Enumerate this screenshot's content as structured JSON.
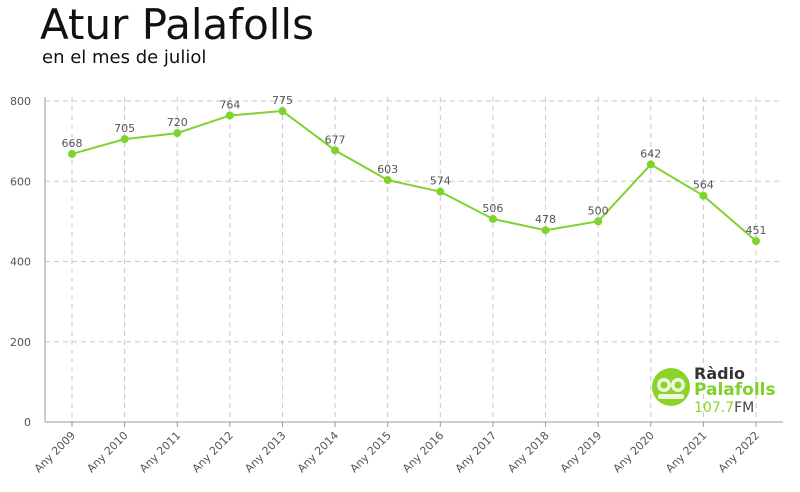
{
  "chart_data": {
    "type": "line",
    "title": "Atur Palafolls",
    "subtitle": "en el mes de juliol",
    "categories": [
      "Any 2009",
      "Any 2010",
      "Any 2011",
      "Any 2012",
      "Any 2013",
      "Any 2014",
      "Any 2015",
      "Any 2016",
      "Any 2017",
      "Any 2018",
      "Any 2019",
      "Any 2020",
      "Any 2021",
      "Any 2022"
    ],
    "series": [
      {
        "values": [
          668,
          705,
          720,
          764,
          775,
          677,
          603,
          574,
          506,
          478,
          500,
          642,
          564,
          451
        ]
      }
    ],
    "y_ticks": [
      0,
      200,
      400,
      600,
      800
    ],
    "ylim": [
      0,
      800
    ],
    "grid": true,
    "line_color": "#7fd32d",
    "grid_color": "#c8c8c8",
    "label_color": "#555555"
  },
  "logo": {
    "line1": "Ràdio",
    "line2": "Palafolls",
    "frequency": "107.7",
    "band": "FM",
    "icon": "radio-palafolls-logo-icon"
  }
}
